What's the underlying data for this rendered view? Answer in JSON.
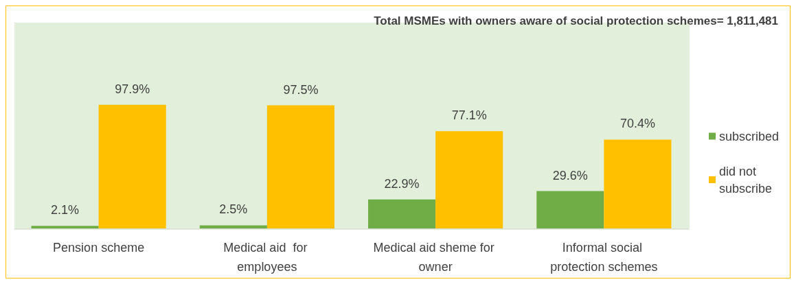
{
  "chart_data": {
    "type": "bar",
    "title": "Total MSMEs with owners aware of social protection schemes= 1,811,481",
    "categories": [
      "Pension scheme",
      "Medical aid  for employees",
      "Medical aid sheme for owner",
      "Informal social protection schemes"
    ],
    "series": [
      {
        "name": "subscribed",
        "color": "#70ad47",
        "values": [
          2.1,
          2.5,
          22.9,
          29.6
        ],
        "value_labels": [
          "2.1%",
          "2.5%",
          "22.9%",
          "29.6%"
        ]
      },
      {
        "name": "did not subscribe",
        "color": "#ffc000",
        "values": [
          97.9,
          97.5,
          77.1,
          70.4
        ],
        "value_labels": [
          "97.9%",
          "97.5%",
          "77.1%",
          "70.4%"
        ]
      }
    ],
    "grid": false,
    "legend": "right"
  }
}
